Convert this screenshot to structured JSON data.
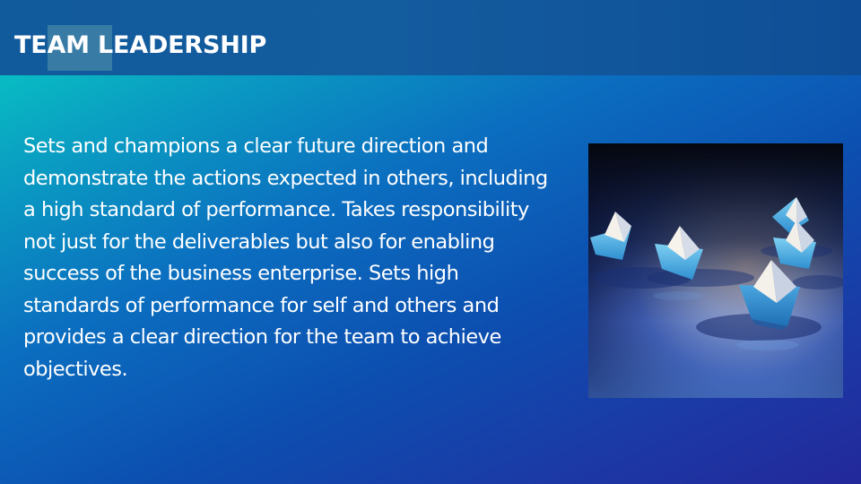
{
  "slide": {
    "title": "TEAM LEADERSHIP",
    "body": "Sets and champions a clear future direction and demonstrate the actions expected in others, including a high standard of performance. Takes responsibility not just for the deliverables but also for enabling success of the business enterprise. Sets high standards of performance for self and others and provides a clear direction for the team to achieve objectives.",
    "image_icon": "paper-boats-image"
  },
  "colors": {
    "title_text": "#ffffff",
    "header_bar": "#135c9e",
    "accent_square": "#3f82a8",
    "gradient_start": "#06d3c4",
    "gradient_end": "#23289a",
    "boat_blue": "#4fb4e6"
  }
}
